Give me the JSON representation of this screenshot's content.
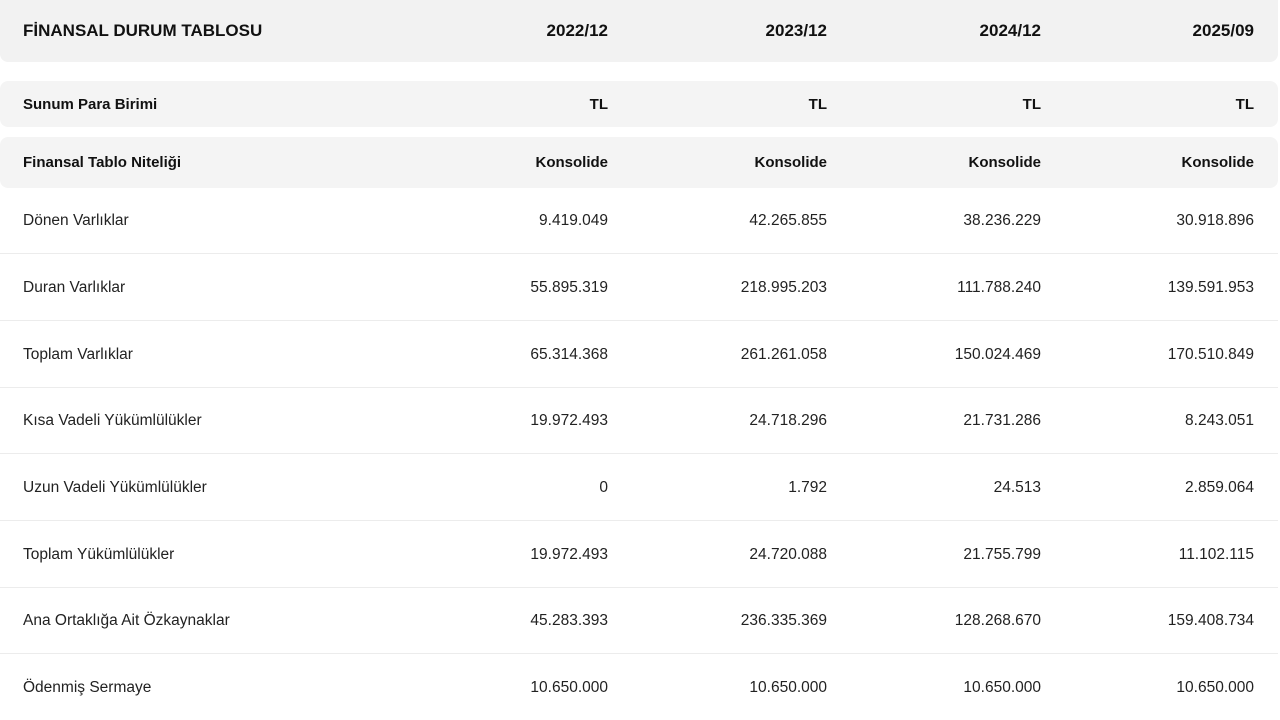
{
  "header": {
    "title": "FİNANSAL DURUM TABLOSU",
    "periods": [
      "2022/12",
      "2023/12",
      "2024/12",
      "2025/09"
    ]
  },
  "currency_row": {
    "label": "Sunum Para Birimi",
    "values": [
      "TL",
      "TL",
      "TL",
      "TL"
    ]
  },
  "type_row": {
    "label": "Finansal Tablo Niteliği",
    "values": [
      "Konsolide",
      "Konsolide",
      "Konsolide",
      "Konsolide"
    ]
  },
  "rows": [
    {
      "label": "Dönen Varlıklar",
      "values": [
        "9.419.049",
        "42.265.855",
        "38.236.229",
        "30.918.896"
      ]
    },
    {
      "label": "Duran Varlıklar",
      "values": [
        "55.895.319",
        "218.995.203",
        "111.788.240",
        "139.591.953"
      ]
    },
    {
      "label": "Toplam Varlıklar",
      "values": [
        "65.314.368",
        "261.261.058",
        "150.024.469",
        "170.510.849"
      ]
    },
    {
      "label": "Kısa Vadeli Yükümlülükler",
      "values": [
        "19.972.493",
        "24.718.296",
        "21.731.286",
        "8.243.051"
      ]
    },
    {
      "label": "Uzun Vadeli Yükümlülükler",
      "values": [
        "0",
        "1.792",
        "24.513",
        "2.859.064"
      ]
    },
    {
      "label": "Toplam Yükümlülükler",
      "values": [
        "19.972.493",
        "24.720.088",
        "21.755.799",
        "11.102.115"
      ]
    },
    {
      "label": "Ana Ortaklığa Ait Özkaynaklar",
      "values": [
        "45.283.393",
        "236.335.369",
        "128.268.670",
        "159.408.734"
      ]
    },
    {
      "label": "Ödenmiş Sermaye",
      "values": [
        "10.650.000",
        "10.650.000",
        "10.650.000",
        "10.650.000"
      ]
    }
  ]
}
